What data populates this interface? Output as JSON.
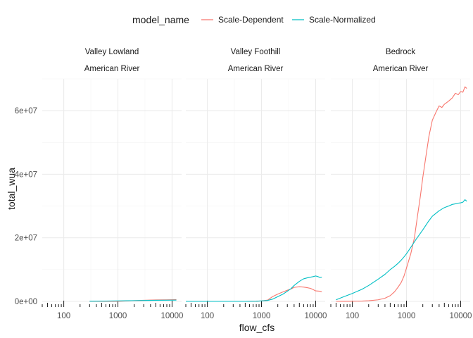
{
  "chart_data": {
    "type": "line",
    "xlabel": "flow_cfs",
    "ylabel": "total_wua",
    "x_scale": "log10",
    "xlim": [
      40,
      15000
    ],
    "ylim": [
      0,
      70000000
    ],
    "x_ticks": [
      100,
      1000,
      10000
    ],
    "x_tick_labels": [
      "100",
      "1000",
      "10000"
    ],
    "y_ticks": [
      0,
      20000000,
      40000000,
      60000000
    ],
    "y_tick_labels": [
      "0e+00",
      "2e+07",
      "4e+07",
      "6e+07"
    ],
    "grid": true,
    "legend": {
      "title": "model_name",
      "position": "top",
      "entries": [
        {
          "name": "Scale-Dependent",
          "color": "#F8766D"
        },
        {
          "name": "Scale-Normalized",
          "color": "#00BFC4"
        }
      ]
    },
    "facets": [
      {
        "strip": [
          "Valley Lowland",
          "American River"
        ],
        "rug_x": [
          40,
          50,
          60,
          70,
          80,
          90,
          100,
          200,
          300,
          400,
          500,
          600,
          700,
          800,
          900,
          1000,
          2000,
          3000,
          4000,
          5000,
          6000,
          7000,
          8000,
          9000,
          10000
        ],
        "series": [
          {
            "name": "Scale-Dependent",
            "color": "#F8766D",
            "x": [
              300,
              600,
              1000,
              1500,
              2000,
              3000,
              5000,
              8000,
              12000
            ],
            "y": [
              0,
              0,
              0,
              150000,
              250000,
              350000,
              450000,
              500000,
              550000
            ]
          },
          {
            "name": "Scale-Normalized",
            "color": "#00BFC4",
            "x": [
              300,
              600,
              1000,
              1500,
              2000,
              3000,
              5000,
              8000,
              12000
            ],
            "y": [
              50000,
              100000,
              150000,
              200000,
              250000,
              300000,
              350000,
              380000,
              400000
            ]
          }
        ]
      },
      {
        "strip": [
          "Valley Foothill",
          "American River"
        ],
        "rug_x": [
          40,
          50,
          60,
          70,
          80,
          90,
          100,
          200,
          300,
          400,
          500,
          600,
          700,
          800,
          900,
          1000,
          2000,
          3000,
          4000,
          5000,
          6000,
          7000,
          8000,
          9000,
          10000
        ],
        "series": [
          {
            "name": "Scale-Dependent",
            "color": "#F8766D",
            "x": [
              40,
              200,
              500,
              800,
              1000,
              1300,
              1600,
              2000,
              2500,
              3000,
              3500,
              4000,
              5000,
              6000,
              7000,
              8000,
              9000,
              10000,
              12000,
              13000
            ],
            "y": [
              0,
              0,
              0,
              50000,
              150000,
              400000,
              1500000,
              2300000,
              3000000,
              3500000,
              3900000,
              4400000,
              4600000,
              4500000,
              4300000,
              4100000,
              3700000,
              3300000,
              3200000,
              3000000
            ]
          },
          {
            "name": "Scale-Normalized",
            "color": "#00BFC4",
            "x": [
              40,
              200,
              500,
              800,
              1000,
              1300,
              1600,
              2000,
              2500,
              3000,
              3500,
              4000,
              5000,
              6000,
              7000,
              8000,
              9000,
              10000,
              11000,
              12000,
              13000
            ],
            "y": [
              0,
              0,
              0,
              50000,
              150000,
              300000,
              700000,
              1500000,
              2300000,
              3200000,
              4000000,
              5000000,
              6300000,
              7100000,
              7400000,
              7600000,
              7800000,
              8000000,
              7800000,
              7500000,
              7600000
            ]
          }
        ]
      },
      {
        "strip": [
          "Bedrock",
          "American River"
        ],
        "rug_x": [
          40,
          50,
          60,
          70,
          80,
          90,
          100,
          200,
          300,
          400,
          500,
          600,
          700,
          800,
          900,
          1000,
          2000,
          3000,
          4000,
          5000,
          6000,
          7000,
          8000,
          9000,
          10000
        ],
        "series": [
          {
            "name": "Scale-Dependent",
            "color": "#F8766D",
            "x": [
              50,
              70,
              100,
              150,
              200,
              300,
              400,
              500,
              600,
              700,
              800,
              900,
              1000,
              1200,
              1400,
              1600,
              1800,
              2000,
              2300,
              2600,
              3000,
              3500,
              4000,
              4500,
              5000,
              6000,
              7000,
              8000,
              9000,
              10000,
              11000,
              12000,
              13000
            ],
            "y": [
              0,
              20000,
              50000,
              100000,
              200000,
              500000,
              1000000,
              1800000,
              3000000,
              4500000,
              6000000,
              8000000,
              10500000,
              15000000,
              20000000,
              27000000,
              33000000,
              39000000,
              46000000,
              52000000,
              57000000,
              59500000,
              61500000,
              61000000,
              62000000,
              63000000,
              64000000,
              65500000,
              65000000,
              66000000,
              65800000,
              67500000,
              67000000
            ]
          },
          {
            "name": "Scale-Normalized",
            "color": "#00BFC4",
            "x": [
              50,
              70,
              100,
              150,
              200,
              300,
              400,
              500,
              600,
              700,
              800,
              900,
              1000,
              1200,
              1500,
              2000,
              2500,
              3000,
              4000,
              5000,
              6000,
              7000,
              8000,
              9000,
              10000,
              11000,
              12000,
              13000
            ],
            "y": [
              500000,
              1500000,
              2500000,
              3800000,
              5000000,
              7000000,
              8500000,
              10000000,
              11000000,
              12000000,
              13000000,
              14000000,
              15000000,
              17000000,
              19500000,
              22500000,
              25000000,
              26800000,
              28500000,
              29500000,
              30000000,
              30500000,
              30700000,
              30900000,
              31000000,
              31200000,
              32000000,
              31500000
            ]
          }
        ]
      }
    ]
  }
}
